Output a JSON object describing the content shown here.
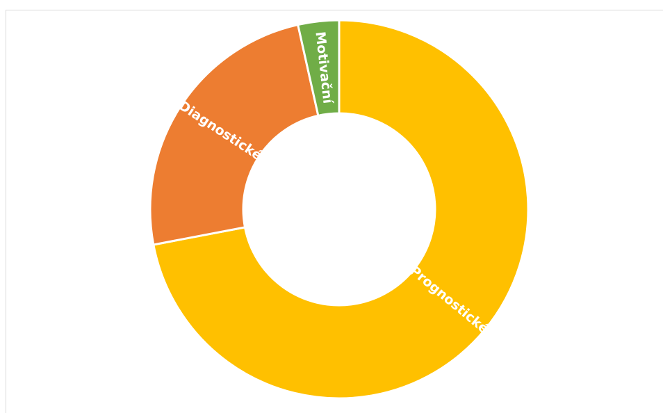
{
  "chart_data": {
    "type": "pie",
    "variant": "doughnut",
    "legend": "none",
    "slices": [
      {
        "label": "Prognostické",
        "value": 72,
        "color": "#FFC000"
      },
      {
        "label": "Diagnostické",
        "value": 24.5,
        "color": "#ED7D31"
      },
      {
        "label": "Motivační",
        "value": 3.5,
        "color": "#70AD47"
      }
    ]
  }
}
